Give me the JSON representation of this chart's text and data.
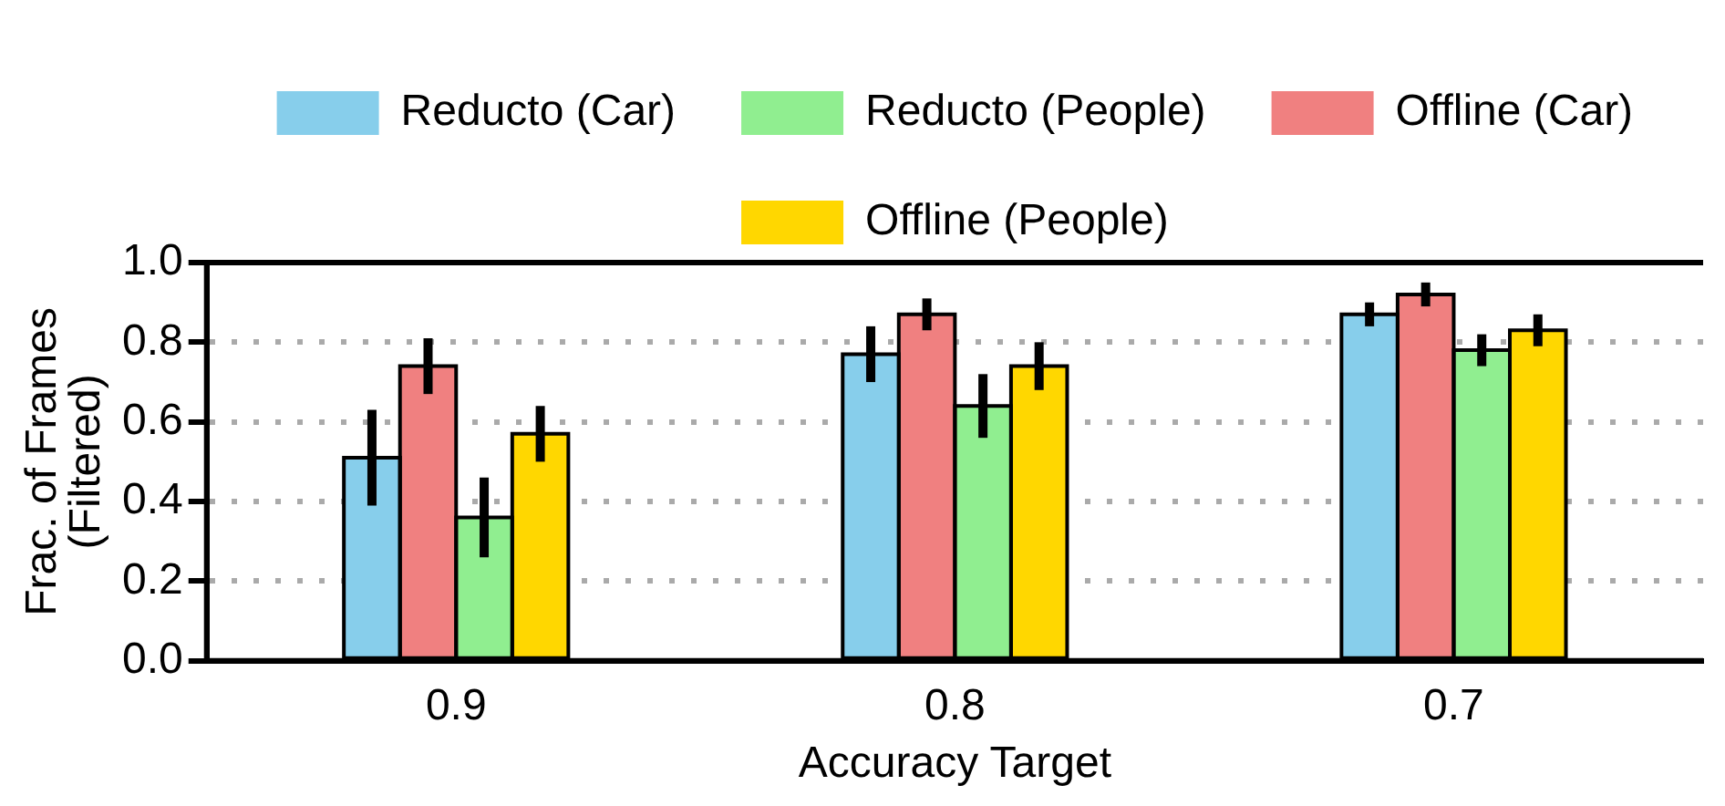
{
  "chart_data": {
    "type": "bar",
    "xlabel": "Accuracy Target",
    "ylabel": "Frac. of Frames\n(Filtered)",
    "categories": [
      "0.9",
      "0.8",
      "0.7"
    ],
    "series": [
      {
        "name": "Reducto (Car)",
        "color": "#87ceeb",
        "values": [
          0.51,
          0.77,
          0.87
        ],
        "errors": [
          0.12,
          0.07,
          0.03
        ]
      },
      {
        "name": "Offline (Car)",
        "color": "#f08080",
        "values": [
          0.74,
          0.87,
          0.92
        ],
        "errors": [
          0.07,
          0.04,
          0.03
        ]
      },
      {
        "name": "Reducto (People)",
        "color": "#90ee90",
        "values": [
          0.36,
          0.64,
          0.78
        ],
        "errors": [
          0.1,
          0.08,
          0.04
        ]
      },
      {
        "name": "Offline (People)",
        "color": "#ffd700",
        "values": [
          0.57,
          0.74,
          0.83
        ],
        "errors": [
          0.07,
          0.06,
          0.04
        ]
      }
    ],
    "ylim": [
      0,
      1
    ],
    "yticks": [
      {
        "value": 0,
        "label": "0.0"
      },
      {
        "value": 0.2,
        "label": "0.2"
      },
      {
        "value": 0.4,
        "label": "0.4"
      },
      {
        "value": 0.6,
        "label": "0.6"
      },
      {
        "value": 0.8,
        "label": "0.8"
      },
      {
        "value": 1,
        "label": "1.0"
      }
    ],
    "grid": "y",
    "legend": "top"
  }
}
